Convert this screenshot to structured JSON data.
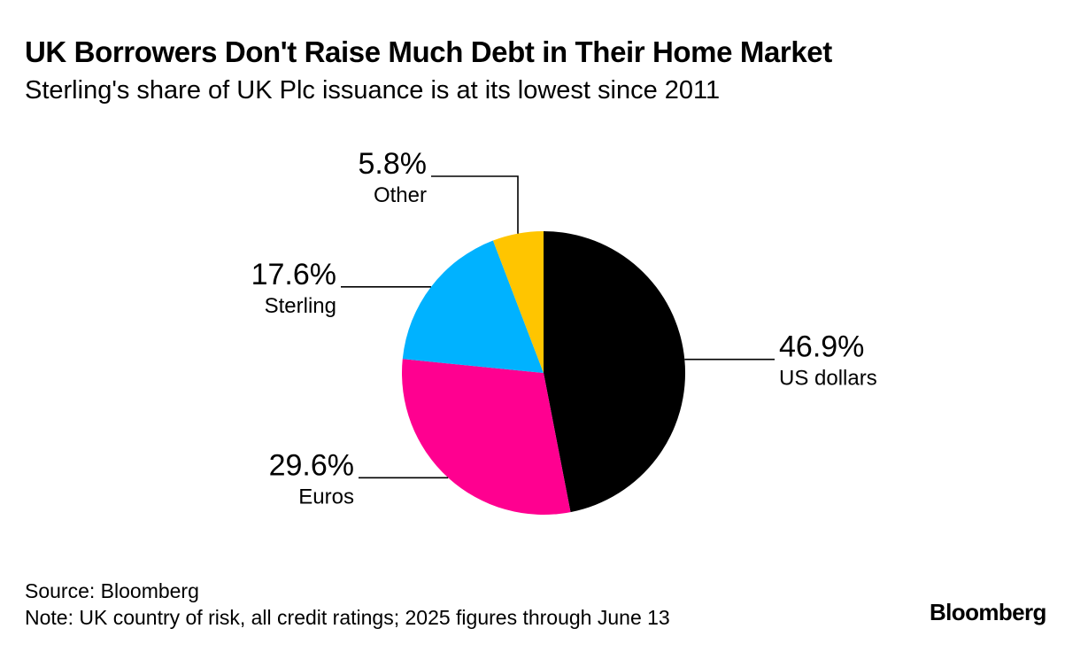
{
  "header": {
    "title": "UK Borrowers Don't Raise Much Debt in Their Home Market",
    "subtitle": "Sterling's share of UK Plc issuance is at its lowest since 2011"
  },
  "footer": {
    "source": "Source: Bloomberg",
    "note": "Note: UK country of risk, all credit ratings; 2025 figures through June 13",
    "brand": "Bloomberg"
  },
  "chart_data": {
    "type": "pie",
    "title": "UK Borrowers Don't Raise Much Debt in Their Home Market",
    "subtitle": "Sterling's share of UK Plc issuance is at its lowest since 2011",
    "unit": "%",
    "slices": [
      {
        "label": "US dollars",
        "value": 46.9,
        "value_label": "46.9%",
        "color": "#000000"
      },
      {
        "label": "Euros",
        "value": 29.6,
        "value_label": "29.6%",
        "color": "#FF0090"
      },
      {
        "label": "Sterling",
        "value": 17.6,
        "value_label": "17.6%",
        "color": "#00B2FF"
      },
      {
        "label": "Other",
        "value": 5.8,
        "value_label": "5.8%",
        "color": "#FFC500"
      }
    ],
    "start": "12 o'clock",
    "direction": "clockwise",
    "legend": "none"
  }
}
